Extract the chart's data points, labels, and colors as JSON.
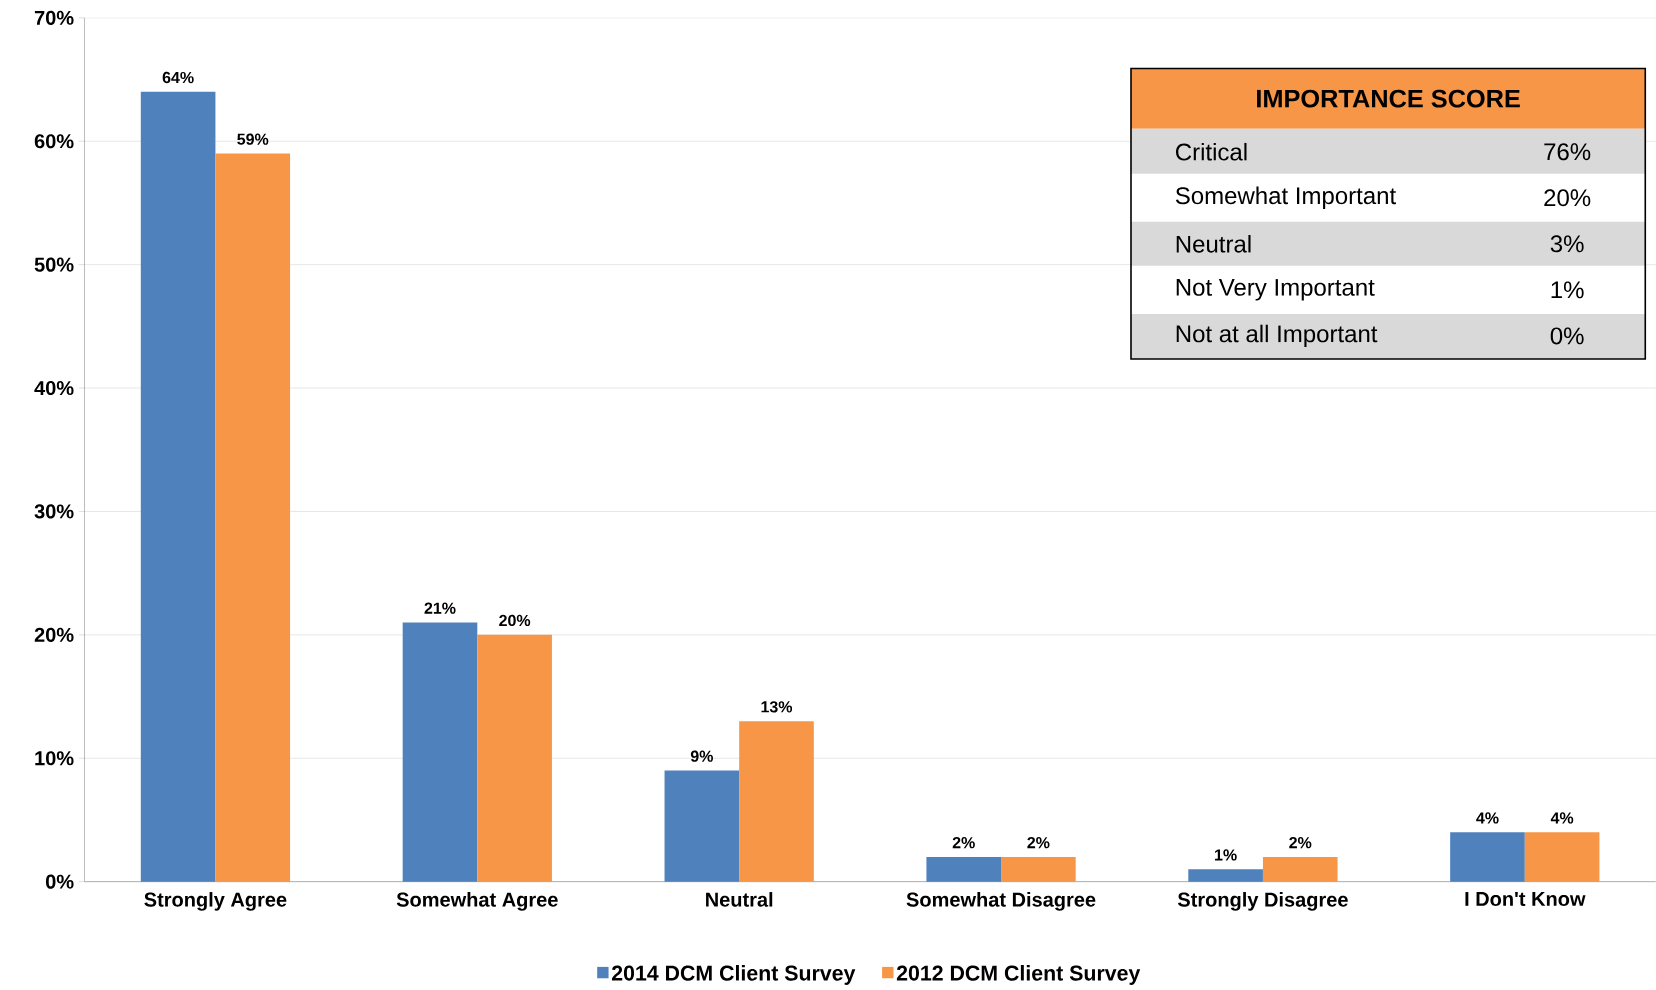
{
  "chart_data": {
    "type": "bar",
    "categories": [
      "Strongly Agree",
      "Somewhat Agree",
      "Neutral",
      "Somewhat Disagree",
      "Strongly Disagree",
      "I Don't Know"
    ],
    "series": [
      {
        "name": "2014 DCM Client Survey",
        "color": "#4f81bd",
        "values": [
          64,
          21,
          9,
          2,
          1,
          4
        ],
        "value_labels": [
          "64%",
          "21%",
          "9%",
          "2%",
          "1%",
          "4%"
        ]
      },
      {
        "name": "2012 DCM Client Survey",
        "color": "#f79646",
        "values": [
          59,
          20,
          13,
          2,
          2,
          4
        ],
        "value_labels": [
          "59%",
          "20%",
          "13%",
          "2%",
          "2%",
          "4%"
        ]
      }
    ],
    "ylim": [
      0,
      70
    ],
    "yticks": [
      {
        "value": 0,
        "label": "0%"
      },
      {
        "value": 10,
        "label": "10%"
      },
      {
        "value": 20,
        "label": "20%"
      },
      {
        "value": 30,
        "label": "30%"
      },
      {
        "value": 40,
        "label": "40%"
      },
      {
        "value": 50,
        "label": "50%"
      },
      {
        "value": 60,
        "label": "60%"
      },
      {
        "value": 70,
        "label": "70%"
      }
    ],
    "grid": "y",
    "legend": "bottom",
    "annotations": [
      "IMPORTANCE SCORE",
      "Critical",
      "76%",
      "Somewhat Important",
      "20%",
      "Neutral",
      "3%",
      "Not Very Important",
      "1%",
      "Not at all Important",
      "0%"
    ]
  }
}
